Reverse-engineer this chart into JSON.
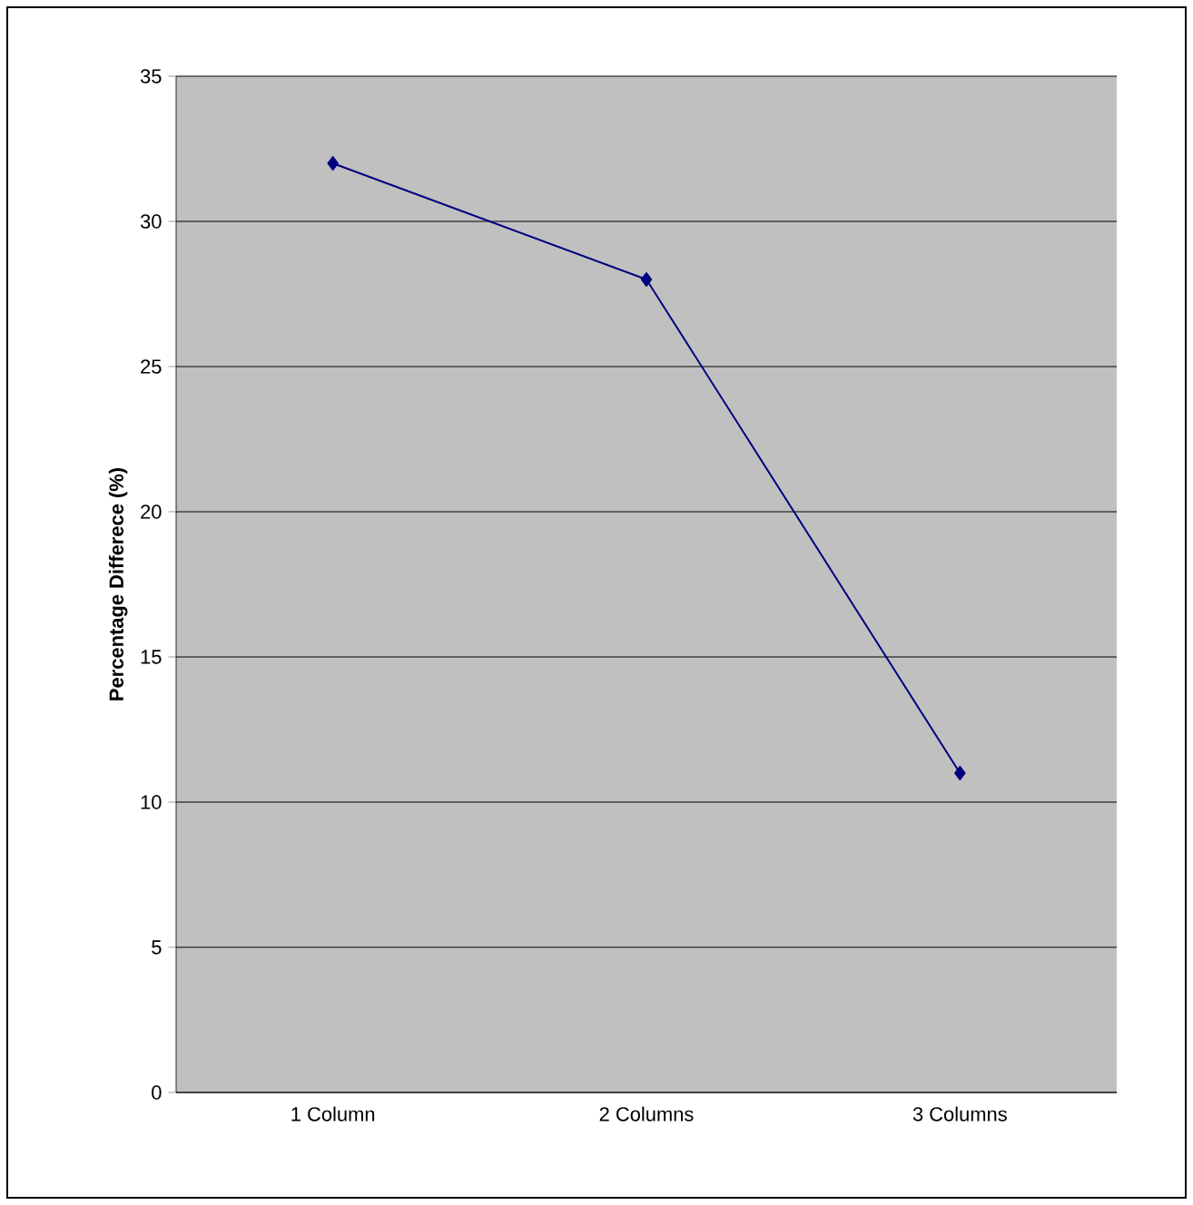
{
  "chart_data": {
    "type": "line",
    "ylabel": "Percentage Differece (%)",
    "categories": [
      "1 Column",
      "2 Columns",
      "3 Columns"
    ],
    "series": [
      {
        "color": "#000080",
        "values": [
          32,
          28,
          11
        ]
      }
    ],
    "ylim": [
      0,
      35
    ],
    "yticks": [
      0,
      5,
      10,
      15,
      20,
      25,
      30,
      35
    ],
    "grid": "y",
    "marker": "diamond",
    "line_style": "solid"
  }
}
